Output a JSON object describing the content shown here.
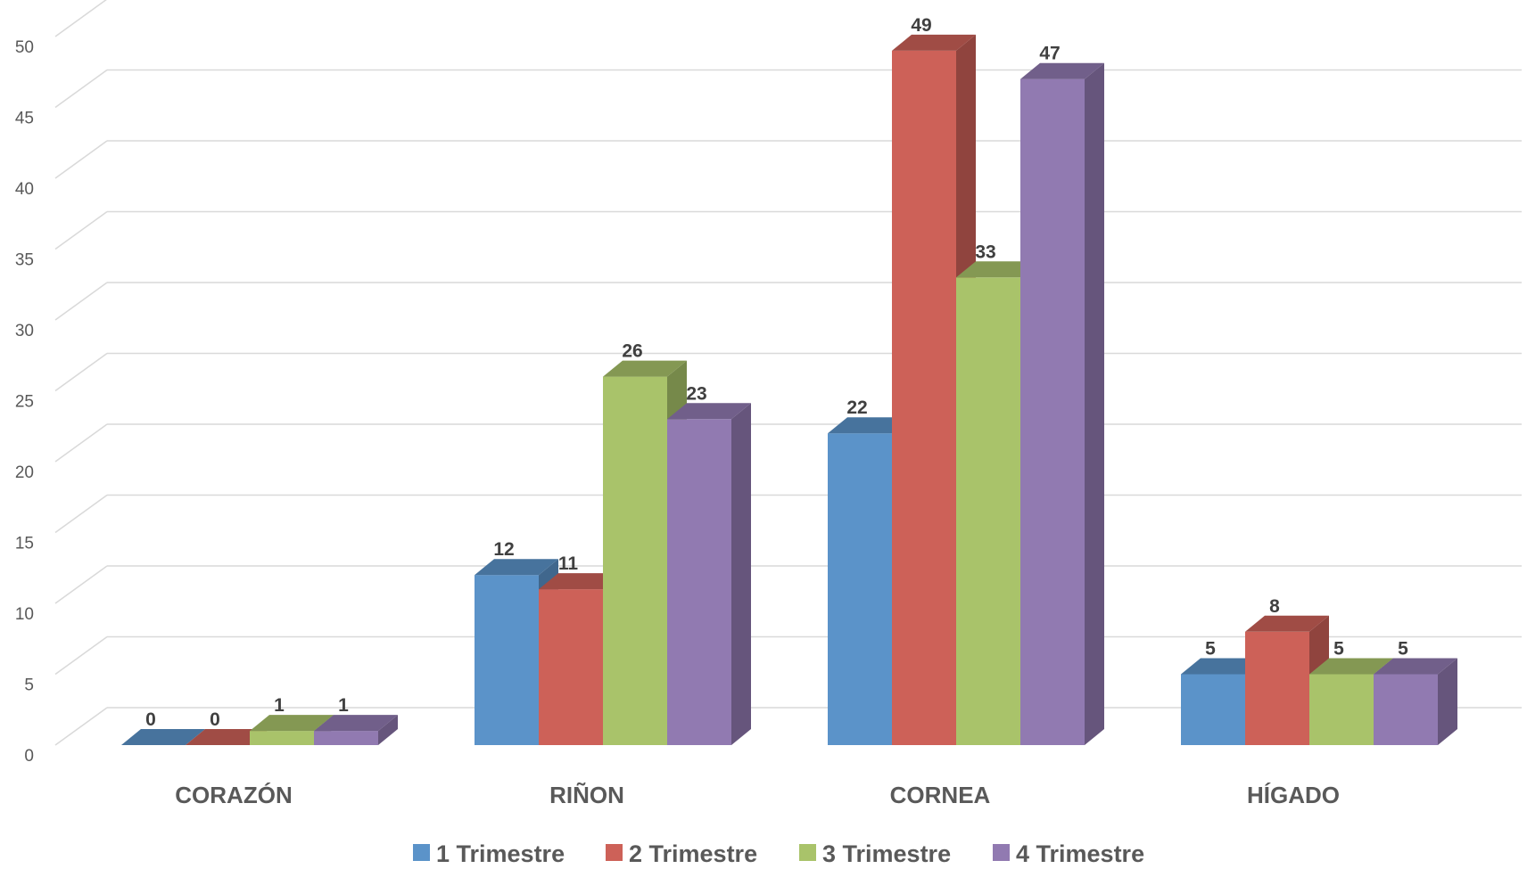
{
  "chart_data": {
    "type": "bar",
    "categories": [
      "CORAZÓN",
      "RIÑON",
      "CORNEA",
      "HÍGADO"
    ],
    "series": [
      {
        "name": "1 Trimestre",
        "values": [
          0,
          12,
          22,
          5
        ]
      },
      {
        "name": "2 Trimestre",
        "values": [
          0,
          11,
          49,
          8
        ]
      },
      {
        "name": "3 Trimestre",
        "values": [
          1,
          26,
          33,
          5
        ]
      },
      {
        "name": "4 Trimestre",
        "values": [
          1,
          23,
          47,
          5
        ]
      }
    ],
    "ylim": [
      0,
      50
    ],
    "yticks": [
      0,
      5,
      10,
      15,
      20,
      25,
      30,
      35,
      40,
      45,
      50
    ],
    "grid": true,
    "legend_position": "bottom",
    "style": "3d-clustered-column",
    "colors": {
      "1 Trimestre": "#5b93c9",
      "2 Trimestre": "#cd6158",
      "3 Trimestre": "#a9c36a",
      "4 Trimestre": "#917ab1"
    }
  }
}
